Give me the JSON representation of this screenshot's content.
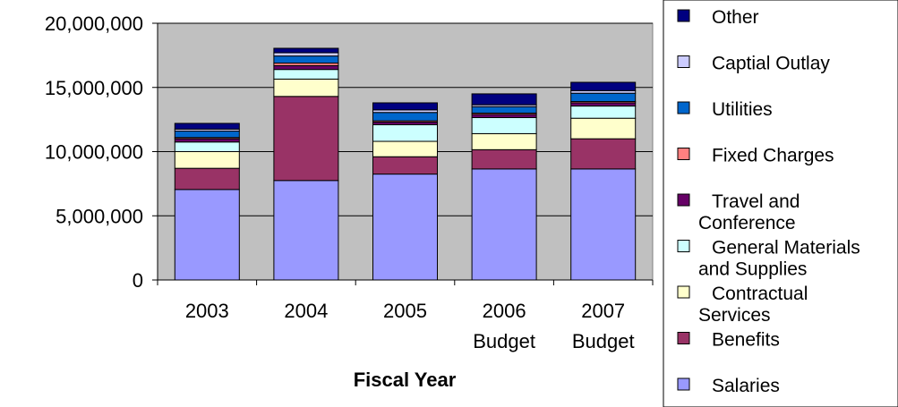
{
  "chart_data": {
    "type": "bar",
    "stacked": true,
    "categories": [
      "2003",
      "2004",
      "2005",
      "2006\nBudget",
      "2007\nBudget"
    ],
    "xlabel": "Fiscal Year",
    "ylabel": "",
    "ylim": [
      0,
      20000000
    ],
    "yticks": [
      "0",
      "5,000,000",
      "10,000,000",
      "15,000,000",
      "20,000,000"
    ],
    "grid": true,
    "plot_background": "#c0c0c0",
    "legend_position": "right",
    "series": [
      {
        "name": "Salaries",
        "color": "#9999ff",
        "values": [
          7050000,
          7750000,
          8250000,
          8650000,
          8650000
        ]
      },
      {
        "name": "Benefits",
        "color": "#993366",
        "values": [
          1650000,
          6550000,
          1350000,
          1500000,
          2350000
        ]
      },
      {
        "name": "Contractual Services",
        "color": "#ffffcc",
        "values": [
          1300000,
          1350000,
          1200000,
          1250000,
          1600000
        ]
      },
      {
        "name": "General Materials and Supplies",
        "color": "#ccffff",
        "values": [
          750000,
          750000,
          1300000,
          1250000,
          950000
        ]
      },
      {
        "name": "Travel and Conference",
        "color": "#660066",
        "values": [
          250000,
          300000,
          200000,
          250000,
          250000
        ]
      },
      {
        "name": "Fixed Charges",
        "color": "#ff8080",
        "values": [
          100000,
          200000,
          100000,
          100000,
          100000
        ]
      },
      {
        "name": "Utilities",
        "color": "#0066cc",
        "values": [
          500000,
          550000,
          650000,
          500000,
          650000
        ]
      },
      {
        "name": "Captial Outlay",
        "color": "#ccccff",
        "values": [
          150000,
          250000,
          200000,
          150000,
          200000
        ]
      },
      {
        "name": "Other",
        "color": "#000080",
        "values": [
          450000,
          350000,
          550000,
          850000,
          650000
        ]
      }
    ],
    "legend": [
      {
        "label": "Other",
        "color": "#000080"
      },
      {
        "label": "Captial Outlay",
        "color": "#ccccff"
      },
      {
        "label": "Utilities",
        "color": "#0066cc"
      },
      {
        "label": "Fixed Charges",
        "color": "#ff8080"
      },
      {
        "label": "Travel and\nConference",
        "color": "#660066"
      },
      {
        "label": "General Materials\nand Supplies",
        "color": "#ccffff"
      },
      {
        "label": "Contractual\nServices",
        "color": "#ffffcc"
      },
      {
        "label": "Benefits",
        "color": "#993366"
      },
      {
        "label": "Salaries",
        "color": "#9999ff"
      }
    ]
  }
}
